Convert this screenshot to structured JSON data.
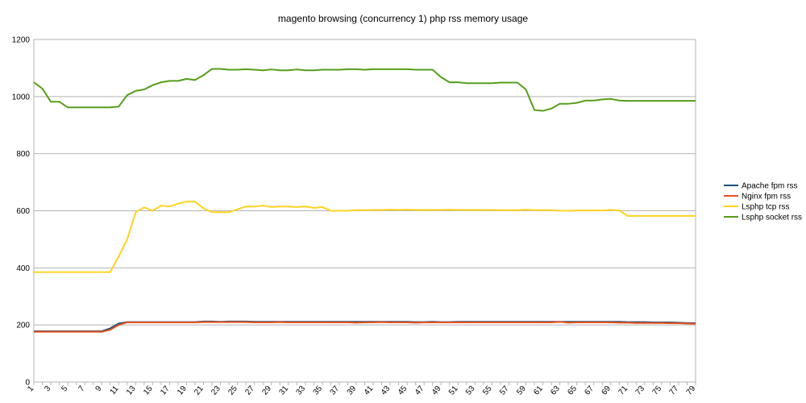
{
  "chart_data": {
    "type": "line",
    "title": "magento browsing (concurrency 1) php rss memory usage",
    "xlabel": "",
    "ylabel": "",
    "ylim": [
      0,
      1200
    ],
    "yticks": [
      0,
      200,
      400,
      600,
      800,
      1000,
      1200
    ],
    "grid": "horizontal",
    "legend_position": "right",
    "x": [
      1,
      2,
      3,
      4,
      5,
      6,
      7,
      8,
      9,
      10,
      11,
      12,
      13,
      14,
      15,
      16,
      17,
      18,
      19,
      20,
      21,
      22,
      23,
      24,
      25,
      26,
      27,
      28,
      29,
      30,
      31,
      32,
      33,
      34,
      35,
      36,
      37,
      38,
      39,
      40,
      41,
      42,
      43,
      44,
      45,
      46,
      47,
      48,
      49,
      50,
      51,
      52,
      53,
      54,
      55,
      56,
      57,
      58,
      59,
      60,
      61,
      62,
      63,
      64,
      65,
      66,
      67,
      68,
      69,
      70,
      71,
      72,
      73,
      74,
      75,
      76,
      77,
      78,
      79
    ],
    "x_tick_labels": [
      1,
      3,
      5,
      7,
      9,
      11,
      13,
      15,
      17,
      19,
      21,
      23,
      25,
      27,
      29,
      31,
      33,
      35,
      37,
      39,
      41,
      43,
      45,
      47,
      49,
      51,
      53,
      55,
      57,
      59,
      61,
      63,
      65,
      67,
      69,
      71,
      73,
      75,
      77,
      79
    ],
    "series": [
      {
        "name": "Apache fpm rss",
        "color": "#1f4e79",
        "values": [
          178,
          178,
          178,
          178,
          178,
          178,
          178,
          178,
          178,
          188,
          205,
          210,
          210,
          210,
          210,
          210,
          210,
          210,
          210,
          210,
          212,
          212,
          211,
          212,
          212,
          212,
          211,
          211,
          211,
          211,
          211,
          211,
          211,
          211,
          211,
          211,
          211,
          211,
          211,
          211,
          211,
          211,
          211,
          211,
          211,
          210,
          210,
          211,
          210,
          210,
          211,
          211,
          211,
          211,
          211,
          211,
          211,
          211,
          211,
          211,
          211,
          211,
          211,
          211,
          211,
          211,
          211,
          211,
          211,
          211,
          210,
          210,
          210,
          209,
          209,
          209,
          208,
          207,
          206
        ]
      },
      {
        "name": "Nginx fpm rss",
        "color": "#e8531e",
        "values": [
          176,
          176,
          176,
          176,
          176,
          176,
          176,
          176,
          176,
          183,
          200,
          209,
          209,
          209,
          209,
          209,
          209,
          209,
          209,
          209,
          210,
          210,
          210,
          210,
          210,
          210,
          209,
          209,
          209,
          210,
          209,
          209,
          209,
          209,
          209,
          209,
          209,
          209,
          208,
          209,
          209,
          210,
          209,
          209,
          209,
          208,
          209,
          209,
          209,
          209,
          209,
          209,
          209,
          209,
          209,
          209,
          209,
          209,
          209,
          209,
          209,
          209,
          211,
          208,
          209,
          209,
          209,
          209,
          209,
          208,
          208,
          207,
          207,
          207,
          207,
          206,
          206,
          205,
          204
        ]
      },
      {
        "name": "Lsphp tcp rss",
        "color": "#ffd320",
        "values": [
          385,
          385,
          385,
          385,
          385,
          385,
          385,
          385,
          385,
          385,
          440,
          500,
          595,
          612,
          600,
          618,
          615,
          625,
          632,
          632,
          608,
          595,
          595,
          595,
          605,
          615,
          615,
          618,
          613,
          615,
          615,
          613,
          615,
          610,
          613,
          600,
          600,
          600,
          602,
          602,
          603,
          603,
          604,
          603,
          604,
          603,
          603,
          603,
          603,
          604,
          603,
          603,
          603,
          603,
          603,
          602,
          602,
          602,
          604,
          602,
          602,
          602,
          600,
          600,
          601,
          601,
          601,
          601,
          603,
          601,
          582,
          582,
          582,
          582,
          582,
          582,
          582,
          582,
          582
        ]
      },
      {
        "name": "Lsphp socket rss",
        "color": "#579d1c",
        "values": [
          1050,
          1028,
          982,
          982,
          962,
          962,
          962,
          962,
          962,
          962,
          965,
          1005,
          1020,
          1025,
          1040,
          1050,
          1055,
          1055,
          1062,
          1058,
          1075,
          1097,
          1097,
          1094,
          1094,
          1096,
          1094,
          1092,
          1095,
          1092,
          1092,
          1095,
          1092,
          1092,
          1094,
          1094,
          1094,
          1096,
          1096,
          1094,
          1096,
          1096,
          1096,
          1096,
          1096,
          1094,
          1094,
          1094,
          1068,
          1050,
          1050,
          1047,
          1047,
          1047,
          1047,
          1049,
          1049,
          1049,
          1025,
          953,
          950,
          958,
          975,
          975,
          978,
          986,
          986,
          990,
          992,
          986,
          985,
          985,
          985,
          985,
          985,
          985,
          985,
          985,
          985
        ]
      }
    ]
  }
}
